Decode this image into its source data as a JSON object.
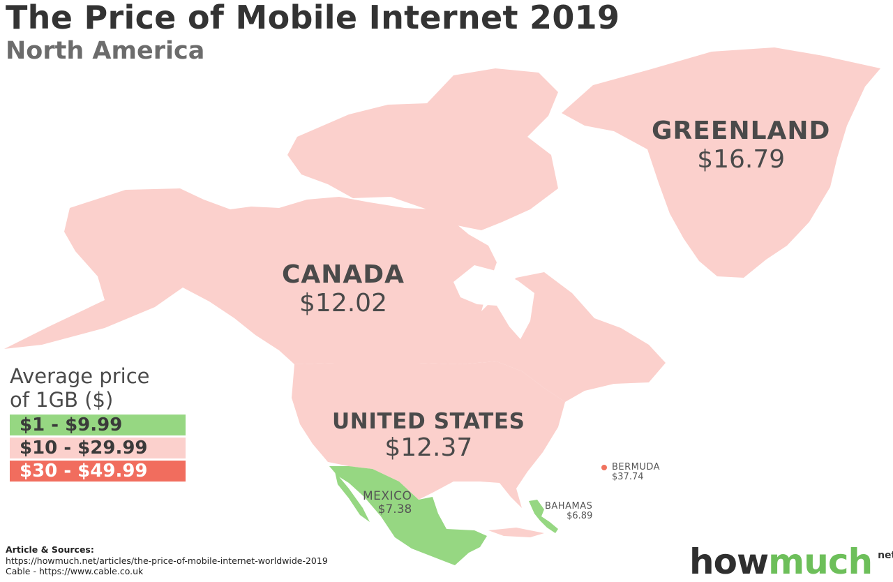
{
  "title": "The Price of Mobile Internet 2019",
  "subtitle": "North America",
  "colors": {
    "range_low": "#96d782",
    "range_mid": "#fbd0cc",
    "range_high": "#f16d5e",
    "background": "#ffffff",
    "text": "#3b3b3b"
  },
  "countries": {
    "greenland": {
      "name": "GREENLAND",
      "price": "$16.79"
    },
    "canada": {
      "name": "CANADA",
      "price": "$12.02"
    },
    "united_states": {
      "name": "UNITED STATES",
      "price": "$12.37"
    },
    "mexico": {
      "name": "MEXICO",
      "price": "$7.38"
    },
    "bahamas": {
      "name": "BAHAMAS",
      "price": "$6.89"
    },
    "bermuda": {
      "name": "BERMUDA",
      "price": "$37.74"
    }
  },
  "legend": {
    "title": "Average price\nof 1GB ($)",
    "ranges": [
      {
        "label": "$1 - $9.99",
        "color": "#96d782"
      },
      {
        "label": "$10 - $29.99",
        "color": "#fbd0cc"
      },
      {
        "label": "$30 - $49.99",
        "color": "#f16d5e"
      }
    ]
  },
  "sources": {
    "heading": "Article & Sources:",
    "lines": [
      "https://howmuch.net/articles/the-price-of-mobile-internet-worldwide-2019",
      "Cable - https://www.cable.co.uk"
    ]
  },
  "brand": {
    "part1": "how",
    "part2": "much",
    "suffix": "net"
  }
}
